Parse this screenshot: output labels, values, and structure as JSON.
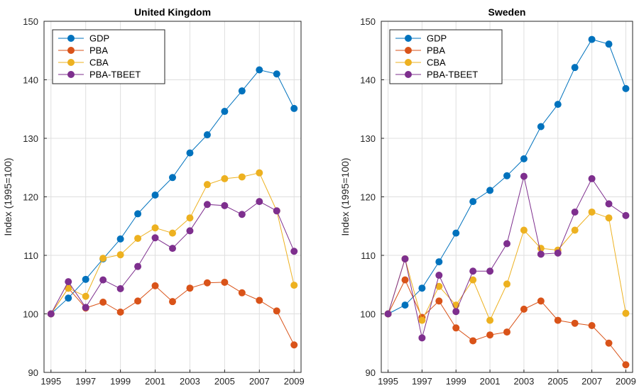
{
  "chart_data": [
    {
      "type": "line",
      "title": "United Kingdom",
      "xlabel": "",
      "ylabel": "Index (1995=100)",
      "xlim": [
        1994.6,
        2009.4
      ],
      "ylim": [
        90,
        150
      ],
      "xticks": [
        1995,
        1997,
        1999,
        2001,
        2003,
        2005,
        2007,
        2009
      ],
      "yticks": [
        90,
        100,
        110,
        120,
        130,
        140,
        150
      ],
      "grid": true,
      "legend": "top-left",
      "x": [
        1995,
        1996,
        1997,
        1998,
        1999,
        2000,
        2001,
        2002,
        2003,
        2004,
        2005,
        2006,
        2007,
        2008,
        2009
      ],
      "series": [
        {
          "name": "GDP",
          "color": "#0072BD",
          "values": [
            100,
            102.7,
            105.9,
            109.4,
            112.8,
            117.1,
            120.3,
            123.3,
            127.5,
            130.6,
            134.6,
            138.1,
            141.7,
            141.0,
            135.1
          ]
        },
        {
          "name": "PBA",
          "color": "#D95319",
          "values": [
            100,
            104.4,
            101.0,
            102.0,
            100.3,
            102.2,
            104.8,
            102.1,
            104.4,
            105.3,
            105.4,
            103.6,
            102.3,
            100.5,
            94.7
          ]
        },
        {
          "name": "CBA",
          "color": "#EDB120",
          "values": [
            100,
            104.4,
            103.0,
            109.5,
            110.1,
            112.9,
            114.7,
            113.8,
            116.4,
            122.1,
            123.1,
            123.4,
            124.1,
            117.6,
            104.9
          ]
        },
        {
          "name": "PBA-TBEET",
          "color": "#7E2F8E",
          "values": [
            100,
            105.5,
            101.1,
            105.8,
            104.3,
            108.1,
            113.0,
            111.2,
            114.2,
            118.7,
            118.5,
            117.0,
            119.2,
            117.6,
            110.7
          ]
        }
      ]
    },
    {
      "type": "line",
      "title": "Sweden",
      "xlabel": "",
      "ylabel": "Index (1995=100)",
      "xlim": [
        1994.6,
        2009.4
      ],
      "ylim": [
        90,
        150
      ],
      "xticks": [
        1995,
        1997,
        1999,
        2001,
        2003,
        2005,
        2007,
        2009
      ],
      "yticks": [
        90,
        100,
        110,
        120,
        130,
        140,
        150
      ],
      "grid": true,
      "legend": "top-left",
      "x": [
        1995,
        1996,
        1997,
        1998,
        1999,
        2000,
        2001,
        2002,
        2003,
        2004,
        2005,
        2006,
        2007,
        2008,
        2009
      ],
      "series": [
        {
          "name": "GDP",
          "color": "#0072BD",
          "values": [
            100,
            101.5,
            104.4,
            108.9,
            113.8,
            119.2,
            121.1,
            123.6,
            126.5,
            132.0,
            135.8,
            142.1,
            146.9,
            146.1,
            138.5
          ]
        },
        {
          "name": "PBA",
          "color": "#D95319",
          "values": [
            100,
            105.8,
            99.4,
            102.2,
            97.6,
            95.4,
            96.4,
            96.9,
            100.8,
            102.2,
            98.9,
            98.4,
            98.0,
            95.0,
            91.3
          ]
        },
        {
          "name": "CBA",
          "color": "#EDB120",
          "values": [
            100,
            109.4,
            98.9,
            104.7,
            101.5,
            105.8,
            98.9,
            105.1,
            114.3,
            111.2,
            110.9,
            114.3,
            117.4,
            116.4,
            100.1
          ]
        },
        {
          "name": "PBA-TBEET",
          "color": "#7E2F8E",
          "values": [
            100,
            109.4,
            95.9,
            106.6,
            100.4,
            107.3,
            107.3,
            112.0,
            123.5,
            110.2,
            110.4,
            117.4,
            123.1,
            118.8,
            116.8
          ]
        }
      ]
    }
  ]
}
